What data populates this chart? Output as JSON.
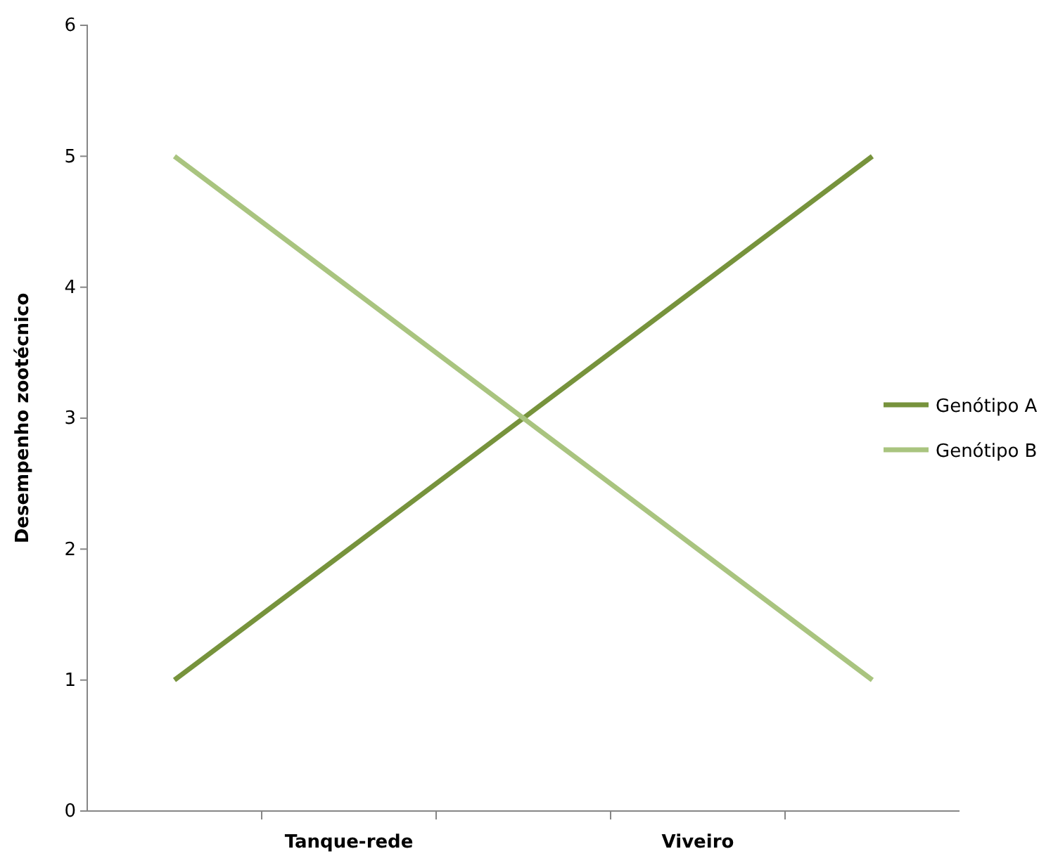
{
  "chart_data": {
    "type": "line",
    "ylabel": "Desempenho zootécnico",
    "categories": [
      null,
      "Tanque-rede",
      null,
      "Viveiro",
      null
    ],
    "ylim": [
      0,
      6
    ],
    "yticks": [
      0,
      1,
      2,
      3,
      4,
      5,
      6
    ],
    "series": [
      {
        "name": "Genótipo A",
        "color": "#77933c",
        "values": [
          1,
          2,
          3,
          4,
          5
        ]
      },
      {
        "name": "Genótipo B",
        "color": "#a9c47f",
        "values": [
          5,
          4,
          3,
          2,
          1
        ]
      }
    ],
    "legend": "right",
    "grid": false,
    "marker": "none",
    "line_style": "solid"
  }
}
